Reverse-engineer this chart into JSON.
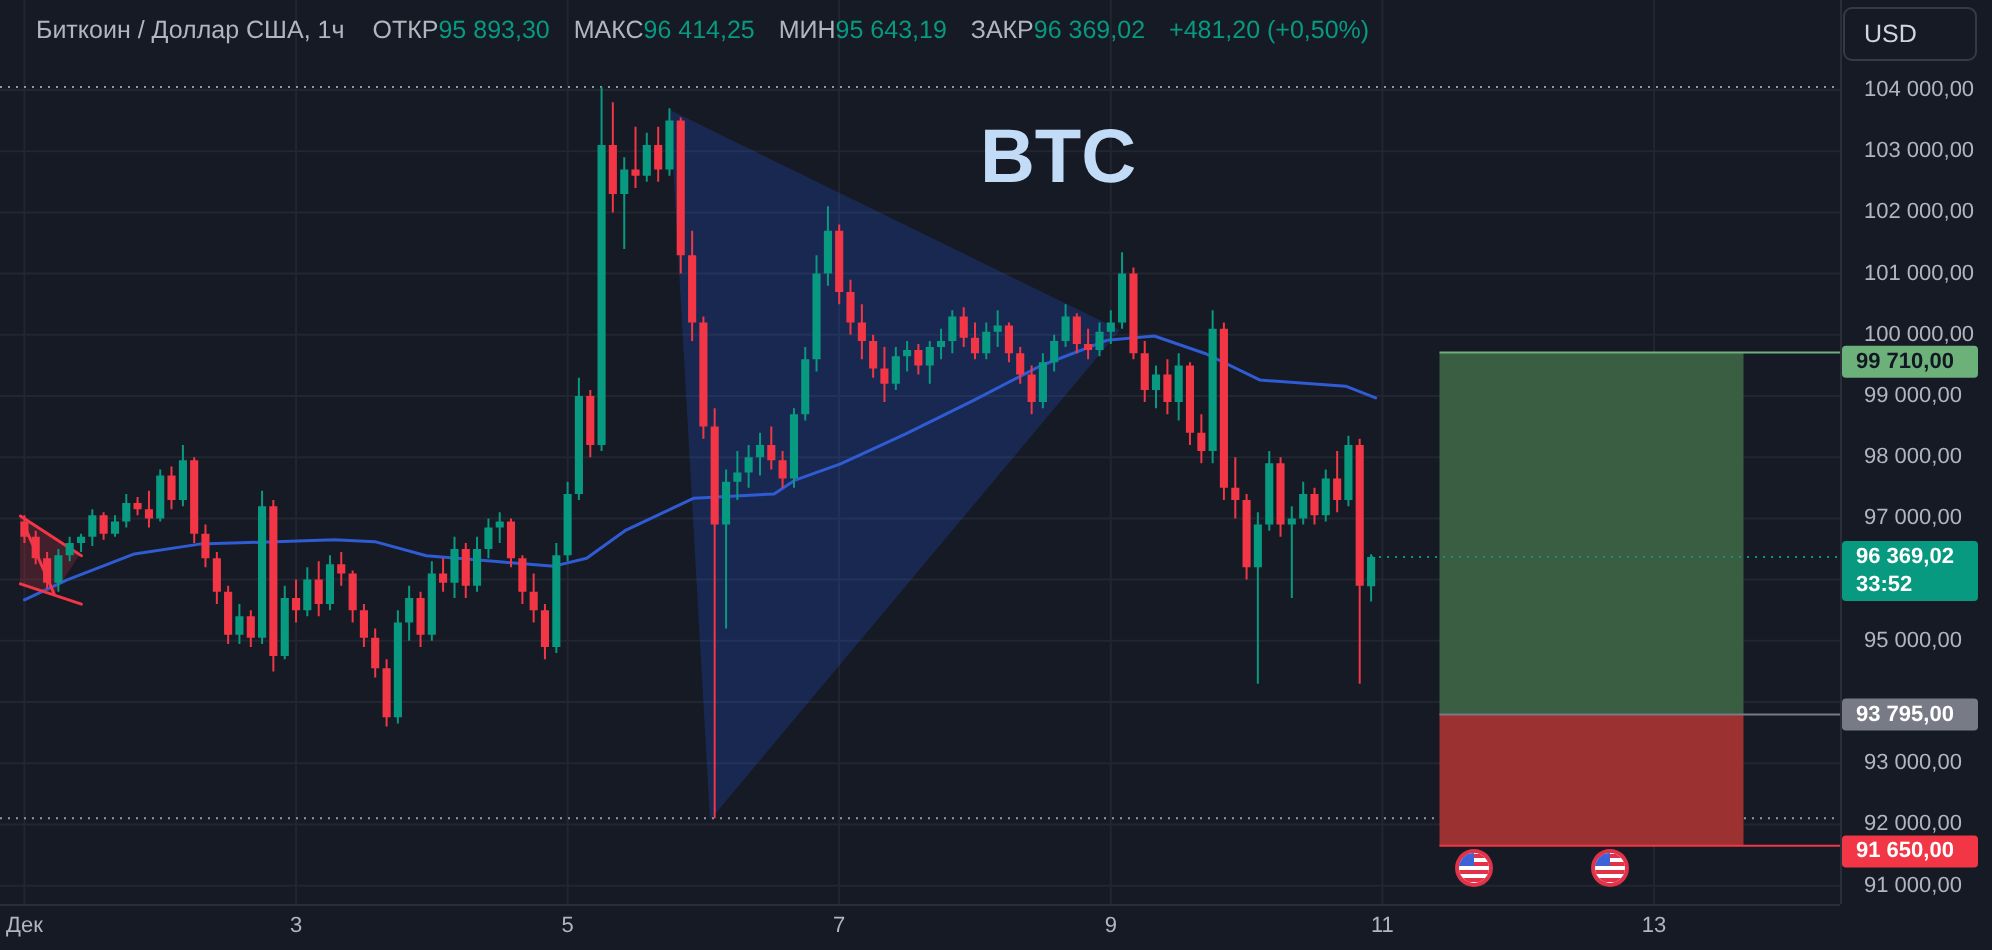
{
  "chart_data": {
    "type": "candlestick",
    "title": "BTC",
    "subtitle": "Биткоин / Доллар США, 1ч",
    "ylabel": "USD",
    "x": [
      1,
      1.083,
      1.167,
      1.25,
      1.333,
      1.417,
      1.5,
      1.583,
      1.667,
      1.75,
      1.833,
      1.917,
      2,
      2.083,
      2.167,
      2.25,
      2.333,
      2.417,
      2.5,
      2.583,
      2.667,
      2.75,
      2.833,
      2.917,
      3,
      3.083,
      3.167,
      3.25,
      3.333,
      3.417,
      3.5,
      3.583,
      3.667,
      3.75,
      3.833,
      3.917,
      4,
      4.083,
      4.167,
      4.25,
      4.333,
      4.417,
      4.5,
      4.583,
      4.667,
      4.75,
      4.833,
      4.917,
      5,
      5.083,
      5.167,
      5.25,
      5.333,
      5.417,
      5.5,
      5.583,
      5.667,
      5.75,
      5.833,
      5.917,
      6,
      6.083,
      6.167,
      6.25,
      6.333,
      6.417,
      6.5,
      6.583,
      6.667,
      6.75,
      6.833,
      6.917,
      7,
      7.083,
      7.167,
      7.25,
      7.333,
      7.417,
      7.5,
      7.583,
      7.667,
      7.75,
      7.833,
      7.917,
      8,
      8.083,
      8.167,
      8.25,
      8.333,
      8.417,
      8.5,
      8.583,
      8.667,
      8.75,
      8.833,
      8.917,
      9,
      9.083,
      9.167,
      9.25,
      9.333,
      9.417,
      9.5,
      9.583,
      9.667,
      9.75,
      9.833,
      9.917,
      10,
      10.083,
      10.167,
      10.25,
      10.333,
      10.417,
      10.5,
      10.583,
      10.667,
      10.75,
      10.833,
      10.917
    ],
    "ohlc": [
      [
        96950,
        97050,
        96600,
        96700
      ],
      [
        96700,
        96800,
        96250,
        96350
      ],
      [
        96350,
        96450,
        95850,
        95950
      ],
      [
        95950,
        96500,
        95800,
        96400
      ],
      [
        96400,
        96700,
        96300,
        96600
      ],
      [
        96600,
        96750,
        96450,
        96700
      ],
      [
        96700,
        97150,
        96550,
        97050
      ],
      [
        97050,
        97100,
        96650,
        96750
      ],
      [
        96750,
        97050,
        96700,
        96950
      ],
      [
        96950,
        97400,
        96850,
        97250
      ],
      [
        97250,
        97350,
        97050,
        97150
      ],
      [
        97150,
        97450,
        96850,
        97000
      ],
      [
        97000,
        97800,
        96950,
        97700
      ],
      [
        97700,
        97850,
        97150,
        97300
      ],
      [
        97300,
        98200,
        97200,
        97950
      ],
      [
        97950,
        98000,
        96600,
        96750
      ],
      [
        96750,
        96900,
        96200,
        96350
      ],
      [
        96350,
        96450,
        95600,
        95800
      ],
      [
        95800,
        95900,
        94950,
        95100
      ],
      [
        95100,
        95600,
        94950,
        95400
      ],
      [
        95400,
        95500,
        94900,
        95050
      ],
      [
        95050,
        97450,
        94950,
        97200
      ],
      [
        97200,
        97300,
        94500,
        94750
      ],
      [
        94750,
        95900,
        94700,
        95700
      ],
      [
        95700,
        96000,
        95300,
        95500
      ],
      [
        95500,
        96200,
        95400,
        96000
      ],
      [
        96000,
        96300,
        95400,
        95600
      ],
      [
        95600,
        96400,
        95500,
        96250
      ],
      [
        96250,
        96450,
        95900,
        96100
      ],
      [
        96100,
        96150,
        95300,
        95500
      ],
      [
        95500,
        95600,
        94900,
        95050
      ],
      [
        95050,
        95200,
        94400,
        94550
      ],
      [
        94550,
        94700,
        93600,
        93750
      ],
      [
        93750,
        95500,
        93650,
        95300
      ],
      [
        95300,
        95900,
        95000,
        95700
      ],
      [
        95700,
        95800,
        94900,
        95100
      ],
      [
        95100,
        96300,
        95000,
        96100
      ],
      [
        96100,
        96350,
        95800,
        95950
      ],
      [
        95950,
        96700,
        95700,
        96500
      ],
      [
        96500,
        96600,
        95700,
        95900
      ],
      [
        95900,
        96700,
        95800,
        96500
      ],
      [
        96500,
        97000,
        96350,
        96850
      ],
      [
        96850,
        97100,
        96600,
        96950
      ],
      [
        96950,
        97000,
        96200,
        96350
      ],
      [
        96350,
        96400,
        95600,
        95800
      ],
      [
        95800,
        96100,
        95300,
        95500
      ],
      [
        95500,
        95600,
        94700,
        94900
      ],
      [
        94900,
        96600,
        94800,
        96400
      ],
      [
        96400,
        97600,
        96300,
        97400
      ],
      [
        97400,
        99300,
        97300,
        99000
      ],
      [
        99000,
        99100,
        98000,
        98200
      ],
      [
        98200,
        104050,
        98100,
        103100
      ],
      [
        103100,
        103800,
        102000,
        102300
      ],
      [
        102300,
        102900,
        101400,
        102700
      ],
      [
        102700,
        103400,
        102400,
        102600
      ],
      [
        102600,
        103300,
        102500,
        103100
      ],
      [
        103100,
        103400,
        102500,
        102700
      ],
      [
        102700,
        103700,
        102600,
        103500
      ],
      [
        103500,
        103550,
        101000,
        101300
      ],
      [
        101300,
        101700,
        99900,
        100200
      ],
      [
        100200,
        100300,
        98300,
        98500
      ],
      [
        98500,
        98800,
        92100,
        96900
      ],
      [
        96900,
        97800,
        95200,
        97600
      ],
      [
        97600,
        98100,
        97300,
        97750
      ],
      [
        97750,
        98200,
        97500,
        98000
      ],
      [
        98000,
        98400,
        97700,
        98200
      ],
      [
        98200,
        98500,
        97800,
        97950
      ],
      [
        97950,
        98100,
        97500,
        97650
      ],
      [
        97650,
        98800,
        97500,
        98700
      ],
      [
        98700,
        99800,
        98600,
        99600
      ],
      [
        99600,
        101300,
        99400,
        101000
      ],
      [
        101000,
        102100,
        100800,
        101700
      ],
      [
        101700,
        101800,
        100500,
        100700
      ],
      [
        100700,
        100900,
        100000,
        100200
      ],
      [
        100200,
        100500,
        99600,
        99900
      ],
      [
        99900,
        100000,
        99300,
        99450
      ],
      [
        99450,
        99800,
        98900,
        99200
      ],
      [
        99200,
        99800,
        99100,
        99650
      ],
      [
        99650,
        99900,
        99400,
        99750
      ],
      [
        99750,
        99850,
        99350,
        99500
      ],
      [
        99500,
        99900,
        99200,
        99800
      ],
      [
        99800,
        100100,
        99600,
        99900
      ],
      [
        99900,
        100400,
        99700,
        100300
      ],
      [
        100300,
        100450,
        99800,
        99950
      ],
      [
        99950,
        100200,
        99600,
        99700
      ],
      [
        99700,
        100200,
        99600,
        100050
      ],
      [
        100050,
        100400,
        99800,
        100150
      ],
      [
        100150,
        100200,
        99550,
        99700
      ],
      [
        99700,
        99800,
        99200,
        99350
      ],
      [
        99350,
        99500,
        98700,
        98900
      ],
      [
        98900,
        99700,
        98800,
        99550
      ],
      [
        99550,
        100000,
        99400,
        99900
      ],
      [
        99900,
        100500,
        99800,
        100300
      ],
      [
        100300,
        100350,
        99700,
        99850
      ],
      [
        99850,
        100100,
        99600,
        99750
      ],
      [
        99750,
        100200,
        99650,
        100050
      ],
      [
        100050,
        100400,
        99850,
        100200
      ],
      [
        100200,
        101350,
        100100,
        101000
      ],
      [
        101000,
        101100,
        99600,
        99700
      ],
      [
        99700,
        99900,
        98900,
        99100
      ],
      [
        99100,
        99500,
        98800,
        99350
      ],
      [
        99350,
        99600,
        98700,
        98900
      ],
      [
        98900,
        99700,
        98600,
        99500
      ],
      [
        99500,
        99550,
        98200,
        98400
      ],
      [
        98400,
        98700,
        97900,
        98100
      ],
      [
        98100,
        100400,
        97900,
        100100
      ],
      [
        100100,
        100200,
        97300,
        97500
      ],
      [
        97500,
        98000,
        97000,
        97300
      ],
      [
        97300,
        97400,
        96000,
        96200
      ],
      [
        96200,
        97100,
        94300,
        96900
      ],
      [
        96900,
        98100,
        96800,
        97900
      ],
      [
        97900,
        98000,
        96700,
        96900
      ],
      [
        96900,
        97200,
        95700,
        97000
      ],
      [
        97000,
        97600,
        96900,
        97400
      ],
      [
        97400,
        97500,
        96900,
        97050
      ],
      [
        97050,
        97800,
        96950,
        97650
      ],
      [
        97650,
        98100,
        97100,
        97300
      ],
      [
        97300,
        98350,
        97200,
        98200
      ],
      [
        98200,
        98300,
        94300,
        95900
      ],
      [
        95893.3,
        96414.25,
        95643.19,
        96369.02
      ]
    ],
    "series": [
      {
        "type": "line",
        "color": "#2f5bd3",
        "x": [
          1,
          1.31,
          1.81,
          2.29,
          3.28,
          3.58,
          3.96,
          4.5,
          4.9,
          5.14,
          5.43,
          5.68,
          5.93,
          6.52,
          6.67,
          7.01,
          7.49,
          7.99,
          8.48,
          8.97,
          9.32,
          9.7,
          10.1,
          10.73,
          10.95
        ],
        "values": [
          95670,
          95990,
          96420,
          96580,
          96650,
          96620,
          96390,
          96290,
          96220,
          96350,
          96810,
          97070,
          97330,
          97400,
          97620,
          97890,
          98380,
          98930,
          99490,
          99910,
          99980,
          99690,
          99260,
          99160,
          98970
        ]
      },
      {
        "type": "line",
        "color": "#f23645",
        "x": [
          0.97,
          1.42
        ],
        "values": [
          97040,
          96390
        ]
      },
      {
        "type": "line",
        "color": "#f23645",
        "x": [
          0.97,
          1.42
        ],
        "values": [
          95930,
          95600
        ]
      },
      {
        "type": "line",
        "color": "#f23645",
        "x": [
          1,
          1.22
        ],
        "values": [
          96880,
          95760
        ]
      },
      {
        "type": "bar",
        "color": "#3a5e42",
        "x": [
          12.54
        ],
        "base": [
          93795
        ],
        "values": [
          5915
        ]
      },
      {
        "type": "bar",
        "color": "#9b3131",
        "x": [
          12.54
        ],
        "base": [
          91650
        ],
        "values": [
          2145
        ]
      }
    ],
    "xlim": [
      0.82,
      14.37
    ],
    "xticks": [
      {
        "value": 1,
        "label": "Дек"
      },
      3,
      5,
      7,
      9,
      11,
      13
    ],
    "ylim": [
      90700,
      105470
    ],
    "yticks": [
      {
        "value": 91000,
        "label": "91 000,00"
      },
      {
        "value": 92000,
        "label": "92 000,00"
      },
      {
        "value": 93000,
        "label": "93 000,00"
      },
      {
        "value": 94000,
        "label": null
      },
      {
        "value": 95000,
        "label": "95 000,00"
      },
      {
        "value": 96000,
        "label": null
      },
      {
        "value": 97000,
        "label": "97 000,00"
      },
      {
        "value": 98000,
        "label": "98 000,00"
      },
      {
        "value": 99000,
        "label": "99 000,00"
      },
      {
        "value": 100000,
        "label": "100 000,00"
      },
      {
        "value": 101000,
        "label": "101 000,00"
      },
      {
        "value": 102000,
        "label": "102 000,00"
      },
      {
        "value": 103000,
        "label": "103 000,00"
      },
      {
        "value": 104000,
        "label": "104 000,00"
      }
    ],
    "grid": true,
    "ref_lines": [
      {
        "axis": "y",
        "value": 104050,
        "line_style": "dotted",
        "color": "#9598a1"
      },
      {
        "axis": "y",
        "value": 92100,
        "line_style": "dotted",
        "color": "#9598a1"
      },
      {
        "axis": "y",
        "value": 99710,
        "label": "99 710,00",
        "color": "#6cb07a"
      },
      {
        "axis": "y",
        "value": 96369.02,
        "label": "96 369,02 33:52",
        "color": "#089981",
        "line_style": "dotted"
      },
      {
        "axis": "y",
        "value": 93795,
        "label": "93 795,00",
        "color": "#787b86"
      },
      {
        "axis": "y",
        "value": 91650,
        "label": "91 650,00",
        "color": "#f23645"
      }
    ],
    "annotations": [
      "ОТКР95 893,30",
      "МАКС96 414,25",
      "МИН95 643,19",
      "ЗАКР96 369,02",
      "+481,20 (+0,50%)"
    ]
  }
}
